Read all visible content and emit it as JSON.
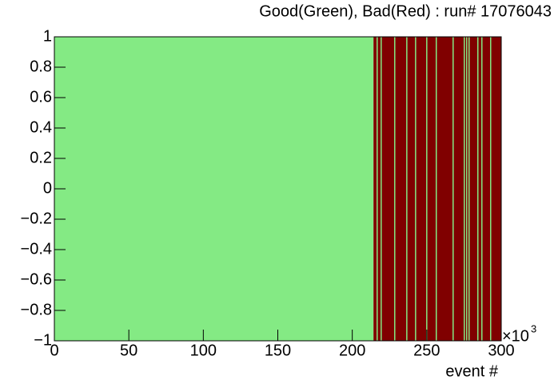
{
  "chart_data": {
    "type": "intervals",
    "title": "Good(Green), Bad(Red) : run# 17076043",
    "x_label": "event #",
    "x_scale_base": "×10",
    "x_scale_exponent": "3",
    "good_color": "#84ea84",
    "bad_color": "#800000",
    "bad": [
      [
        214.2,
        300
      ]
    ],
    "good": [
      [
        0,
        214.2
      ],
      [
        216.3,
        217.1
      ],
      [
        219.0,
        219.8
      ],
      [
        228.1,
        228.9
      ],
      [
        236.2,
        237.0
      ],
      [
        242.1,
        242.9
      ],
      [
        249.6,
        250.4
      ],
      [
        256.0,
        256.8
      ],
      [
        267.3,
        268.1
      ],
      [
        274.8,
        275.6
      ],
      [
        276.4,
        277.2
      ],
      [
        278.0,
        278.8
      ],
      [
        283.9,
        284.7
      ],
      [
        286.6,
        287.4
      ],
      [
        292.5,
        293.3
      ]
    ],
    "xlim": [
      0,
      300
    ],
    "xticks": [
      0,
      50,
      100,
      150,
      200,
      250,
      300
    ],
    "ylim": [
      -1,
      1
    ],
    "yticks": [
      {
        "value": -1,
        "label": "−1"
      },
      {
        "value": -0.8,
        "label": "−0.8"
      },
      {
        "value": -0.6,
        "label": "−0.6"
      },
      {
        "value": -0.4,
        "label": "−0.4"
      },
      {
        "value": -0.2,
        "label": "−0.2"
      },
      0,
      0.2,
      0.4,
      0.6,
      0.8,
      1
    ]
  }
}
